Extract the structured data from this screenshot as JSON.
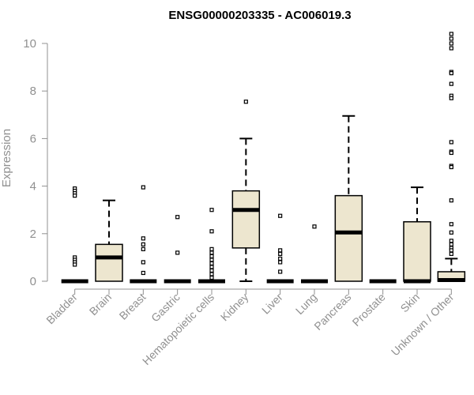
{
  "chart_data": {
    "type": "boxplot",
    "title": "ENSG00000203335 - AC006019.3",
    "ylabel": "Expression",
    "xlabel": "",
    "ylim": [
      0,
      10.4
    ],
    "yticks": [
      0,
      2,
      4,
      6,
      8,
      10
    ],
    "grid": false,
    "colors": {
      "box_fill": "#ede6cf",
      "line": "#000000",
      "axis": "#909090"
    },
    "categories": [
      "Bladder",
      "Brain",
      "Breast",
      "Gastric",
      "Hematopoietic cells",
      "Kidney",
      "Liver",
      "Lung",
      "Pancreas",
      "Prostate",
      "Skin",
      "Unknown / Other"
    ],
    "boxes": [
      {
        "name": "Bladder",
        "q1": 0,
        "median": 0,
        "q3": 0,
        "whisker_low": 0,
        "whisker_high": 0,
        "outliers": [
          3.9,
          3.8,
          3.7,
          3.6,
          1.0,
          0.9,
          0.8,
          0.7
        ]
      },
      {
        "name": "Brain",
        "q1": 0,
        "median": 1.0,
        "q3": 1.55,
        "whisker_low": 0,
        "whisker_high": 3.4,
        "outliers": []
      },
      {
        "name": "Breast",
        "q1": 0,
        "median": 0,
        "q3": 0,
        "whisker_low": 0,
        "whisker_high": 0,
        "outliers": [
          3.95,
          1.8,
          1.55,
          1.35,
          0.8,
          0.35
        ]
      },
      {
        "name": "Gastric",
        "q1": 0,
        "median": 0,
        "q3": 0,
        "whisker_low": 0,
        "whisker_high": 0,
        "outliers": [
          2.7,
          1.2
        ]
      },
      {
        "name": "Hematopoietic cells",
        "q1": 0,
        "median": 0,
        "q3": 0,
        "whisker_low": 0,
        "whisker_high": 0,
        "outliers": [
          3.0,
          2.1,
          1.35,
          1.2,
          1.05,
          0.9,
          0.75,
          0.6,
          0.45,
          0.3,
          0.15
        ]
      },
      {
        "name": "Kidney",
        "q1": 1.4,
        "median": 3.0,
        "q3": 3.8,
        "whisker_low": 0,
        "whisker_high": 6.0,
        "outliers": [
          7.55
        ]
      },
      {
        "name": "Liver",
        "q1": 0,
        "median": 0,
        "q3": 0,
        "whisker_low": 0,
        "whisker_high": 0,
        "outliers": [
          2.75,
          1.3,
          1.15,
          0.95,
          0.8,
          0.4
        ]
      },
      {
        "name": "Lung",
        "q1": 0,
        "median": 0,
        "q3": 0,
        "whisker_low": 0,
        "whisker_high": 0,
        "outliers": [
          2.3
        ]
      },
      {
        "name": "Pancreas",
        "q1": 0,
        "median": 2.05,
        "q3": 3.6,
        "whisker_low": 0,
        "whisker_high": 6.95,
        "outliers": []
      },
      {
        "name": "Prostate",
        "q1": 0,
        "median": 0,
        "q3": 0,
        "whisker_low": 0,
        "whisker_high": 0,
        "outliers": []
      },
      {
        "name": "Skin",
        "q1": 0,
        "median": 0,
        "q3": 2.5,
        "whisker_low": 0,
        "whisker_high": 3.95,
        "outliers": []
      },
      {
        "name": "Unknown / Other",
        "q1": 0,
        "median": 0.05,
        "q3": 0.4,
        "whisker_low": 0,
        "whisker_high": 0.95,
        "outliers": [
          10.4,
          10.2,
          10.0,
          9.8,
          8.8,
          8.75,
          8.3,
          7.8,
          7.7,
          5.85,
          5.45,
          5.4,
          4.85,
          4.8,
          3.4,
          2.4,
          2.05,
          1.7,
          1.55,
          1.4,
          1.3,
          1.15
        ]
      }
    ]
  }
}
